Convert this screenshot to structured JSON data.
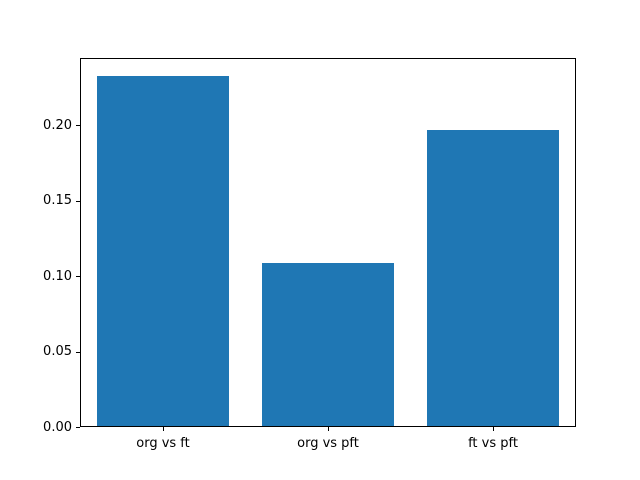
{
  "chart_data": {
    "type": "bar",
    "title": "",
    "xlabel": "",
    "ylabel": "",
    "categories": [
      "org vs ft",
      "org vs pft",
      "ft vs pft"
    ],
    "values": [
      0.233,
      0.109,
      0.197
    ],
    "yticks": [
      {
        "value": 0.0,
        "label": "0.00"
      },
      {
        "value": 0.05,
        "label": "0.05"
      },
      {
        "value": 0.1,
        "label": "0.10"
      },
      {
        "value": 0.15,
        "label": "0.15"
      },
      {
        "value": 0.2,
        "label": "0.20"
      }
    ],
    "ylim": [
      0,
      0.2447
    ],
    "bar_width_fraction": 0.8,
    "bar_color": "#1f77b4",
    "axes_edge_color": "#000000",
    "background_color": "#ffffff",
    "grid": false,
    "legend": false
  }
}
